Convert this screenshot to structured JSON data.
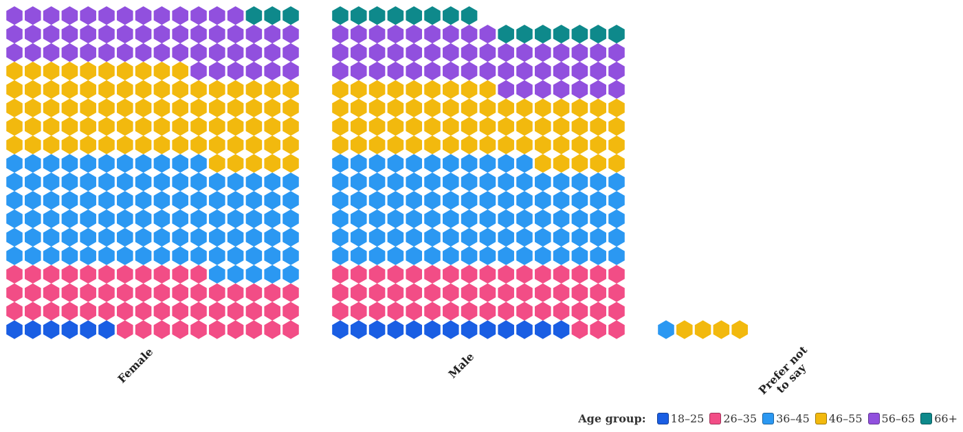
{
  "chart_data": {
    "type": "waffle",
    "categories": [
      "Female",
      "Male",
      "Prefer not\nto say"
    ],
    "legend_title": "Age group:",
    "series": [
      {
        "name": "18–25",
        "color": "#1a5ee3",
        "values": [
          6,
          13,
          0
        ]
      },
      {
        "name": "26–35",
        "color": "#f24d86",
        "values": [
          53,
          51,
          0
        ]
      },
      {
        "name": "36–45",
        "color": "#2b98f2",
        "values": [
          96,
          91,
          1
        ]
      },
      {
        "name": "46–55",
        "color": "#f2b90e",
        "values": [
          79,
          62,
          4
        ]
      },
      {
        "name": "56–65",
        "color": "#9150de",
        "values": [
          51,
          48,
          0
        ]
      },
      {
        "name": "66+",
        "color": "#0e898b",
        "values": [
          3,
          15,
          0
        ]
      }
    ]
  }
}
